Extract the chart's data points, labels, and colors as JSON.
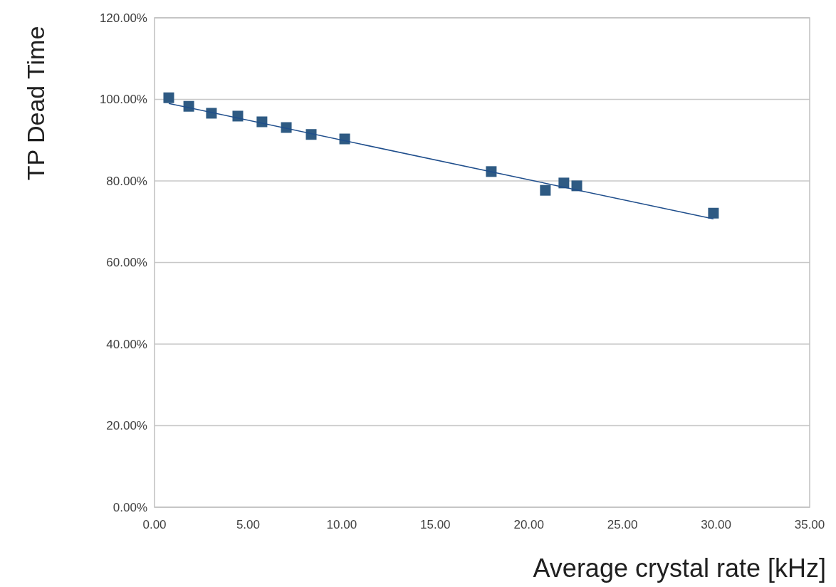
{
  "chart_data": {
    "type": "scatter",
    "xlabel": "Average crystal rate [kHz]",
    "ylabel": "TP Dead Time",
    "xlim": [
      0,
      35
    ],
    "xticks": [
      {
        "value": 0,
        "label": "0.00"
      },
      {
        "value": 5,
        "label": "5.00"
      },
      {
        "value": 10,
        "label": "10.00"
      },
      {
        "value": 15,
        "label": "15.00"
      },
      {
        "value": 20,
        "label": "20.00"
      },
      {
        "value": 25,
        "label": "25.00"
      },
      {
        "value": 30,
        "label": "30.00"
      },
      {
        "value": 35,
        "label": "35.00"
      }
    ],
    "ylim": [
      0,
      120
    ],
    "yticks": [
      {
        "value": 0,
        "label": "0.00%"
      },
      {
        "value": 20,
        "label": "20.00%"
      },
      {
        "value": 40,
        "label": "40.00%"
      },
      {
        "value": 60,
        "label": "60.00%"
      },
      {
        "value": 80,
        "label": "80.00%"
      },
      {
        "value": 100,
        "label": "100.00%"
      },
      {
        "value": 120,
        "label": "120.00%"
      }
    ],
    "grid": "y",
    "series": [
      {
        "marker": "square",
        "color": "#2e5a83",
        "x": [
          0.76,
          1.83,
          3.04,
          4.45,
          5.74,
          7.04,
          8.37,
          10.16,
          17.99,
          20.88,
          21.87,
          22.56,
          29.86
        ],
        "values": [
          100.4,
          98.3,
          96.6,
          95.9,
          94.5,
          93.1,
          91.4,
          90.3,
          82.3,
          77.7,
          79.5,
          78.8,
          72.1
        ]
      },
      {
        "type": "line",
        "color": "#1f4e8c",
        "line_style": "solid",
        "x": [
          0.76,
          29.86
        ],
        "values": [
          99.0,
          70.7
        ]
      }
    ]
  }
}
